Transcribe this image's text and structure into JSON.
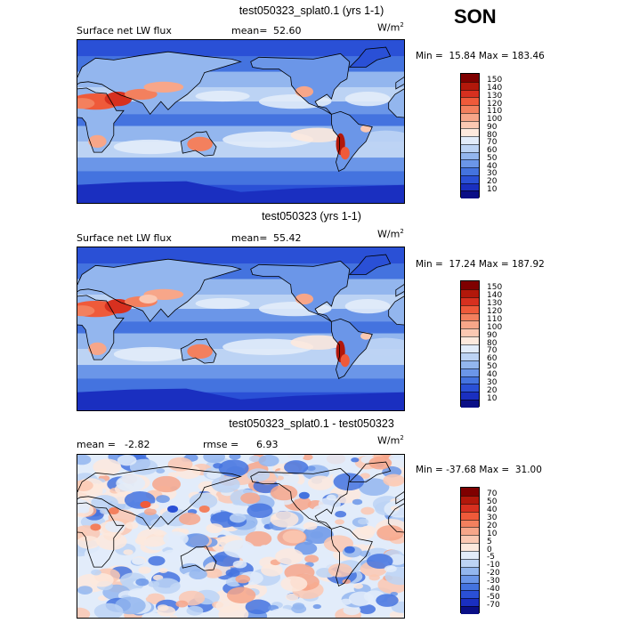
{
  "season": "SON",
  "units_base": "W/m",
  "units_exp": "2",
  "panels": [
    {
      "title": "test050323_splat0.1 (yrs 1-1)",
      "left_label": "Surface net LW flux",
      "stat_label": "mean=",
      "stat_value": "52.60",
      "min_label": "Min =",
      "min_value": "15.84",
      "max_label": "Max =",
      "max_value": "183.46",
      "levels": [
        "150",
        "140",
        "130",
        "120",
        "110",
        "100",
        "90",
        "80",
        "70",
        "60",
        "50",
        "40",
        "30",
        "20",
        "10"
      ]
    },
    {
      "title": "test050323 (yrs 1-1)",
      "left_label": "Surface net LW flux",
      "stat_label": "mean=",
      "stat_value": "55.42",
      "min_label": "Min =",
      "min_value": "17.24",
      "max_label": "Max =",
      "max_value": "187.92",
      "levels": [
        "150",
        "140",
        "130",
        "120",
        "110",
        "100",
        "90",
        "80",
        "70",
        "60",
        "50",
        "40",
        "30",
        "20",
        "10"
      ]
    },
    {
      "title": "test050323_splat0.1 - test050323",
      "left_label": "mean =",
      "left_value": "-2.82",
      "stat_label": "rmse =",
      "stat_value": "6.93",
      "min_label": "Min =",
      "min_value": "-37.68",
      "max_label": "Max =",
      "max_value": "31.00",
      "levels": [
        "70",
        "50",
        "40",
        "30",
        "20",
        "10",
        "5",
        "0",
        "-5",
        "-10",
        "-20",
        "-30",
        "-40",
        "-50",
        "-70"
      ]
    }
  ],
  "colors": {
    "abs_scale": [
      "#7f0000",
      "#b2180b",
      "#d7301f",
      "#ef5a3a",
      "#f3805e",
      "#f7a689",
      "#fbc8b2",
      "#fde9dd",
      "#e2ecfa",
      "#bcd3f4",
      "#93b6ee",
      "#6b96e8",
      "#4473df",
      "#2a50d6",
      "#1a2fc0",
      "#0a0f86"
    ],
    "diff_scale": [
      "#7f0000",
      "#b2180b",
      "#d7301f",
      "#ef5a3a",
      "#f3805e",
      "#f7a689",
      "#fbc8b2",
      "#fde9dd",
      "#e2ecfa",
      "#bcd3f4",
      "#93b6ee",
      "#6b96e8",
      "#4473df",
      "#2a50d6",
      "#1a2fc0",
      "#0a0f86"
    ]
  }
}
